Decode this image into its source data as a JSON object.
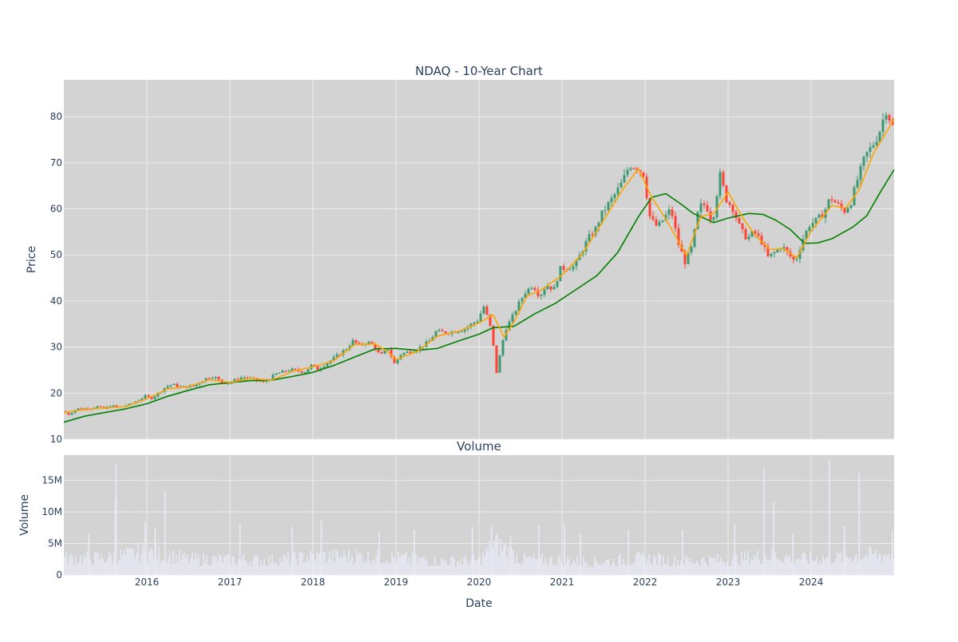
{
  "chart_data": [
    {
      "type": "candlestick",
      "title": "NDAQ - 10-Year Chart",
      "xlabel": "",
      "ylabel": "Price",
      "xlim": [
        2015.0,
        2025.0
      ],
      "ylim": [
        10,
        88
      ],
      "yticks": [
        10,
        20,
        30,
        40,
        50,
        60,
        70,
        80
      ],
      "grid": true,
      "legend": "none",
      "colors": {
        "background": "#d3d3d3",
        "grid": "#ececec",
        "up": "#3d9970",
        "down": "#ff4136",
        "ma_short": "#ffa500",
        "ma_long": "#008000",
        "text": "#2a3f5f"
      },
      "price_path": [
        [
          2015.0,
          16.0
        ],
        [
          2015.08,
          15.4
        ],
        [
          2015.17,
          16.6
        ],
        [
          2015.33,
          16.7
        ],
        [
          2015.42,
          17.1
        ],
        [
          2015.5,
          16.6
        ],
        [
          2015.58,
          17.3
        ],
        [
          2015.67,
          16.9
        ],
        [
          2015.83,
          17.6
        ],
        [
          2016.0,
          19.3
        ],
        [
          2016.08,
          18.9
        ],
        [
          2016.17,
          20.2
        ],
        [
          2016.25,
          21.4
        ],
        [
          2016.33,
          21.9
        ],
        [
          2016.42,
          21.3
        ],
        [
          2016.58,
          21.5
        ],
        [
          2016.75,
          23.4
        ],
        [
          2016.83,
          23.6
        ],
        [
          2016.92,
          22.3
        ],
        [
          2017.0,
          22.2
        ],
        [
          2017.17,
          23.5
        ],
        [
          2017.33,
          22.9
        ],
        [
          2017.42,
          22.3
        ],
        [
          2017.58,
          24.2
        ],
        [
          2017.75,
          25.1
        ],
        [
          2017.92,
          24.6
        ],
        [
          2018.0,
          26.0
        ],
        [
          2018.08,
          25.2
        ],
        [
          2018.25,
          27.3
        ],
        [
          2018.42,
          29.6
        ],
        [
          2018.5,
          31.3
        ],
        [
          2018.58,
          30.3
        ],
        [
          2018.67,
          31.1
        ],
        [
          2018.75,
          30.5
        ],
        [
          2018.83,
          28.0
        ],
        [
          2018.92,
          29.8
        ],
        [
          2019.0,
          26.4
        ],
        [
          2019.08,
          28.5
        ],
        [
          2019.25,
          29.3
        ],
        [
          2019.42,
          31.2
        ],
        [
          2019.5,
          33.3
        ],
        [
          2019.67,
          33.2
        ],
        [
          2019.83,
          33.8
        ],
        [
          2020.0,
          35.8
        ],
        [
          2020.08,
          38.9
        ],
        [
          2020.17,
          33.5
        ],
        [
          2020.23,
          24.5
        ],
        [
          2020.33,
          33.5
        ],
        [
          2020.42,
          36.5
        ],
        [
          2020.5,
          39.5
        ],
        [
          2020.58,
          42.0
        ],
        [
          2020.67,
          43.5
        ],
        [
          2020.75,
          41.0
        ],
        [
          2020.83,
          43.5
        ],
        [
          2020.92,
          42.5
        ],
        [
          2021.0,
          47.0
        ],
        [
          2021.17,
          47.5
        ],
        [
          2021.33,
          53.5
        ],
        [
          2021.42,
          55.5
        ],
        [
          2021.5,
          59.0
        ],
        [
          2021.67,
          63.5
        ],
        [
          2021.75,
          66.0
        ],
        [
          2021.83,
          69.5
        ],
        [
          2021.92,
          69.0
        ],
        [
          2022.0,
          67.5
        ],
        [
          2022.08,
          58.0
        ],
        [
          2022.17,
          56.0
        ],
        [
          2022.33,
          60.0
        ],
        [
          2022.42,
          52.5
        ],
        [
          2022.5,
          48.5
        ],
        [
          2022.58,
          51.5
        ],
        [
          2022.67,
          60.5
        ],
        [
          2022.75,
          61.0
        ],
        [
          2022.83,
          57.0
        ],
        [
          2022.92,
          67.5
        ],
        [
          2023.0,
          62.0
        ],
        [
          2023.08,
          60.0
        ],
        [
          2023.17,
          55.5
        ],
        [
          2023.25,
          53.5
        ],
        [
          2023.33,
          55.0
        ],
        [
          2023.42,
          53.0
        ],
        [
          2023.5,
          49.5
        ],
        [
          2023.58,
          50.5
        ],
        [
          2023.67,
          52.0
        ],
        [
          2023.75,
          50.0
        ],
        [
          2023.83,
          48.5
        ],
        [
          2023.92,
          53.5
        ],
        [
          2024.0,
          56.5
        ],
        [
          2024.08,
          57.5
        ],
        [
          2024.17,
          59.0
        ],
        [
          2024.25,
          62.5
        ],
        [
          2024.33,
          61.0
        ],
        [
          2024.42,
          59.5
        ],
        [
          2024.5,
          61.5
        ],
        [
          2024.58,
          66.5
        ],
        [
          2024.67,
          71.5
        ],
        [
          2024.75,
          73.5
        ],
        [
          2024.83,
          76.0
        ],
        [
          2024.92,
          81.5
        ],
        [
          2025.0,
          78.0
        ]
      ],
      "ma_short": [
        [
          2015.0,
          15.8
        ],
        [
          2015.25,
          16.4
        ],
        [
          2015.5,
          16.8
        ],
        [
          2015.75,
          17.1
        ],
        [
          2016.0,
          18.8
        ],
        [
          2016.25,
          20.9
        ],
        [
          2016.5,
          21.4
        ],
        [
          2016.75,
          22.9
        ],
        [
          2017.0,
          22.3
        ],
        [
          2017.25,
          23.2
        ],
        [
          2017.5,
          22.8
        ],
        [
          2017.75,
          24.7
        ],
        [
          2018.0,
          25.7
        ],
        [
          2018.25,
          27.0
        ],
        [
          2018.5,
          30.5
        ],
        [
          2018.75,
          30.7
        ],
        [
          2018.92,
          28.7
        ],
        [
          2019.0,
          27.3
        ],
        [
          2019.25,
          29.0
        ],
        [
          2019.5,
          32.4
        ],
        [
          2019.75,
          33.4
        ],
        [
          2020.0,
          35.2
        ],
        [
          2020.17,
          37.0
        ],
        [
          2020.3,
          32.2
        ],
        [
          2020.42,
          35.4
        ],
        [
          2020.58,
          41.1
        ],
        [
          2020.75,
          42.4
        ],
        [
          2021.0,
          45.6
        ],
        [
          2021.25,
          50.3
        ],
        [
          2021.5,
          57.5
        ],
        [
          2021.75,
          64.7
        ],
        [
          2021.92,
          68.7
        ],
        [
          2022.08,
          62.5
        ],
        [
          2022.25,
          57.8
        ],
        [
          2022.5,
          49.8
        ],
        [
          2022.67,
          58.3
        ],
        [
          2022.83,
          59.0
        ],
        [
          2023.0,
          63.7
        ],
        [
          2023.17,
          58.2
        ],
        [
          2023.33,
          54.2
        ],
        [
          2023.5,
          51.2
        ],
        [
          2023.67,
          51.3
        ],
        [
          2023.83,
          49.4
        ],
        [
          2024.0,
          55.2
        ],
        [
          2024.25,
          60.7
        ],
        [
          2024.42,
          60.2
        ],
        [
          2024.58,
          64.2
        ],
        [
          2024.75,
          72.0
        ],
        [
          2025.0,
          79.5
        ]
      ],
      "ma_long": [
        [
          2015.0,
          13.7
        ],
        [
          2015.25,
          15.0
        ],
        [
          2015.5,
          15.8
        ],
        [
          2015.75,
          16.6
        ],
        [
          2016.0,
          17.7
        ],
        [
          2016.25,
          19.3
        ],
        [
          2016.5,
          20.6
        ],
        [
          2016.75,
          21.8
        ],
        [
          2017.0,
          22.3
        ],
        [
          2017.25,
          22.7
        ],
        [
          2017.5,
          22.8
        ],
        [
          2017.75,
          23.6
        ],
        [
          2018.0,
          24.5
        ],
        [
          2018.25,
          26.0
        ],
        [
          2018.5,
          27.8
        ],
        [
          2018.75,
          29.6
        ],
        [
          2019.0,
          29.7
        ],
        [
          2019.25,
          29.3
        ],
        [
          2019.5,
          29.7
        ],
        [
          2019.75,
          31.3
        ],
        [
          2020.0,
          32.8
        ],
        [
          2020.17,
          34.2
        ],
        [
          2020.42,
          34.5
        ],
        [
          2020.67,
          37.2
        ],
        [
          2020.92,
          39.5
        ],
        [
          2021.17,
          42.5
        ],
        [
          2021.42,
          45.5
        ],
        [
          2021.67,
          50.5
        ],
        [
          2021.92,
          58.3
        ],
        [
          2022.08,
          62.5
        ],
        [
          2022.25,
          63.3
        ],
        [
          2022.42,
          61.2
        ],
        [
          2022.58,
          59.0
        ],
        [
          2022.83,
          57.0
        ],
        [
          2023.0,
          58.0
        ],
        [
          2023.25,
          59.0
        ],
        [
          2023.42,
          58.8
        ],
        [
          2023.58,
          57.5
        ],
        [
          2023.75,
          55.5
        ],
        [
          2023.92,
          52.5
        ],
        [
          2024.08,
          52.6
        ],
        [
          2024.25,
          53.5
        ],
        [
          2024.5,
          56.0
        ],
        [
          2024.67,
          58.5
        ],
        [
          2024.83,
          63.5
        ],
        [
          2025.0,
          68.5
        ]
      ]
    },
    {
      "type": "bar",
      "title": "Volume",
      "xlabel": "Date",
      "ylabel": "Volume",
      "xlim": [
        2015.0,
        2025.0
      ],
      "ylim": [
        0,
        19000000
      ],
      "yticks": [
        0,
        5000000,
        10000000,
        15000000
      ],
      "ytick_labels": [
        "0",
        "5M",
        "10M",
        "15M"
      ],
      "xticks": [
        2016,
        2017,
        2018,
        2019,
        2020,
        2021,
        2022,
        2023,
        2024
      ],
      "xtick_labels": [
        "2016",
        "2017",
        "2018",
        "2019",
        "2020",
        "2021",
        "2022",
        "2023",
        "2024"
      ],
      "grid": true,
      "colors": {
        "background": "#d3d3d3",
        "bar": "#e8e8f4",
        "grid": "#ececec"
      },
      "volume_level": [
        [
          2015.0,
          2600000
        ],
        [
          2015.5,
          2700000
        ],
        [
          2016.0,
          3600000
        ],
        [
          2016.5,
          2500000
        ],
        [
          2017.0,
          2400000
        ],
        [
          2017.5,
          2300000
        ],
        [
          2018.0,
          2900000
        ],
        [
          2018.5,
          3000000
        ],
        [
          2019.0,
          2700000
        ],
        [
          2019.5,
          2200000
        ],
        [
          2020.0,
          2300000
        ],
        [
          2020.2,
          5000000
        ],
        [
          2020.5,
          2500000
        ],
        [
          2021.0,
          2300000
        ],
        [
          2021.5,
          2100000
        ],
        [
          2022.0,
          2600000
        ],
        [
          2022.5,
          2200000
        ],
        [
          2023.0,
          2400000
        ],
        [
          2023.5,
          3100000
        ],
        [
          2024.0,
          2500000
        ],
        [
          2024.5,
          3000000
        ],
        [
          2025.0,
          3300000
        ]
      ],
      "volume_spikes": [
        [
          2015.63,
          17500000
        ],
        [
          2015.62,
          12200000
        ],
        [
          2016.22,
          13300000
        ],
        [
          2015.98,
          8500000
        ],
        [
          2016.1,
          7500000
        ],
        [
          2015.3,
          6500000
        ],
        [
          2017.12,
          8100000
        ],
        [
          2017.75,
          7600000
        ],
        [
          2018.1,
          8800000
        ],
        [
          2018.8,
          6800000
        ],
        [
          2019.22,
          7200000
        ],
        [
          2019.92,
          7600000
        ],
        [
          2020.15,
          7700000
        ],
        [
          2020.38,
          6200000
        ],
        [
          2020.72,
          7800000
        ],
        [
          2021.03,
          8100000
        ],
        [
          2021.22,
          6600000
        ],
        [
          2021.8,
          7200000
        ],
        [
          2022.45,
          7100000
        ],
        [
          2023.08,
          8100000
        ],
        [
          2023.43,
          17000000
        ],
        [
          2023.55,
          11500000
        ],
        [
          2023.78,
          6600000
        ],
        [
          2024.22,
          18300000
        ],
        [
          2024.4,
          7800000
        ],
        [
          2024.58,
          16200000
        ],
        [
          2024.98,
          7000000
        ]
      ]
    }
  ]
}
